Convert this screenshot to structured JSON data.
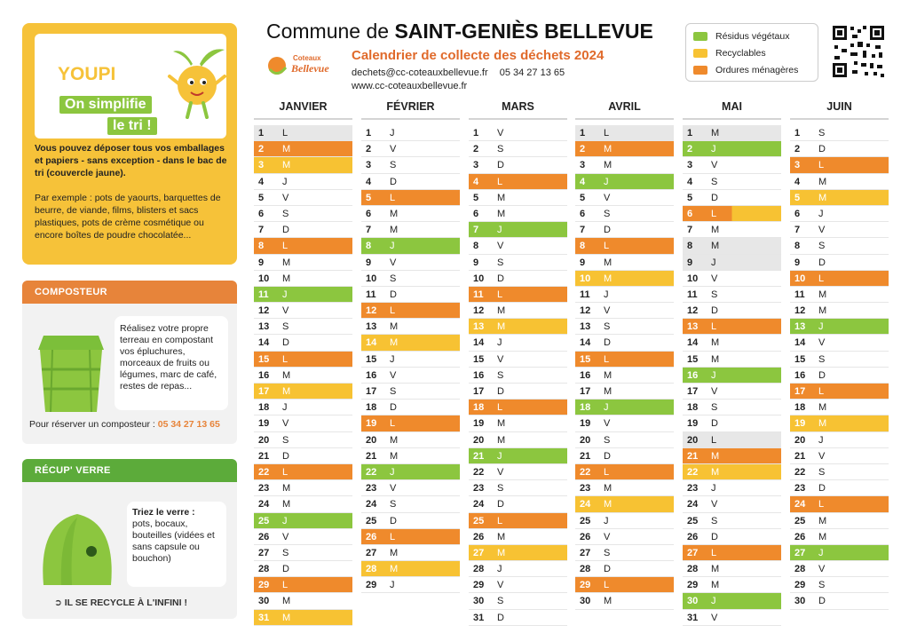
{
  "colors": {
    "orange": "#ef8a2c",
    "yellow": "#f7c233",
    "green": "#8cc63f",
    "gray": "#e7e7e7"
  },
  "youpi": {
    "word": "YOUPI",
    "line1": "On simplifie",
    "line2": "le tri !",
    "strong": "Vous pouvez déposer tous vos emballages et papiers - sans exception - dans le bac de tri (couvercle jaune).",
    "text": "Par exemple : pots de yaourts, barquettes de beurre, de viande, films, blisters et sacs plastiques, pots de crème cosmétique ou encore boîtes de poudre chocolatée..."
  },
  "composteur": {
    "title": "COMPOSTEUR",
    "text": "Réalisez votre propre terreau en compostant vos épluchures, morceaux de fruits ou légumes, marc de café, restes de repas...",
    "reserve_label": "Pour réserver un composteur :",
    "reserve_phone": "05 34 27 13 65"
  },
  "verre": {
    "title": "RÉCUP' VERRE",
    "text_bold": "Triez le verre :",
    "text": "pots, bocaux, bouteilles (vidées et sans capsule ou bouchon)",
    "footer": "IL SE RECYCLE À L'INFINI !"
  },
  "header": {
    "title_prefix": "Commune de",
    "title_name": "SAINT-GENIÈS BELLEVUE",
    "subtitle": "Calendrier de collecte des déchets 2024",
    "email": "dechets@cc-coteauxbellevue.fr",
    "phone": "05 34 27 13 65",
    "web": "www.cc-coteauxbellevue.fr",
    "logo_top": "Coteaux",
    "logo_main": "Bellevue"
  },
  "legend": [
    {
      "label": "Résidus végétaux",
      "color": "#8cc63f"
    },
    {
      "label": "Recyclables",
      "color": "#f7c233"
    },
    {
      "label": "Ordures ménagères",
      "color": "#ef8a2c"
    }
  ],
  "months": [
    {
      "name": "JANVIER",
      "days": [
        {
          "d": "1",
          "l": "L",
          "t": "sh"
        },
        {
          "d": "2",
          "l": "M",
          "t": "o"
        },
        {
          "d": "3",
          "l": "M",
          "t": "y"
        },
        {
          "d": "4",
          "l": "J"
        },
        {
          "d": "5",
          "l": "V"
        },
        {
          "d": "6",
          "l": "S"
        },
        {
          "d": "7",
          "l": "D"
        },
        {
          "d": "8",
          "l": "L",
          "t": "o"
        },
        {
          "d": "9",
          "l": "M"
        },
        {
          "d": "10",
          "l": "M"
        },
        {
          "d": "11",
          "l": "J",
          "t": "g"
        },
        {
          "d": "12",
          "l": "V"
        },
        {
          "d": "13",
          "l": "S"
        },
        {
          "d": "14",
          "l": "D"
        },
        {
          "d": "15",
          "l": "L",
          "t": "o"
        },
        {
          "d": "16",
          "l": "M"
        },
        {
          "d": "17",
          "l": "M",
          "t": "y"
        },
        {
          "d": "18",
          "l": "J"
        },
        {
          "d": "19",
          "l": "V"
        },
        {
          "d": "20",
          "l": "S"
        },
        {
          "d": "21",
          "l": "D"
        },
        {
          "d": "22",
          "l": "L",
          "t": "o"
        },
        {
          "d": "23",
          "l": "M"
        },
        {
          "d": "24",
          "l": "M"
        },
        {
          "d": "25",
          "l": "J",
          "t": "g"
        },
        {
          "d": "26",
          "l": "V"
        },
        {
          "d": "27",
          "l": "S"
        },
        {
          "d": "28",
          "l": "D"
        },
        {
          "d": "29",
          "l": "L",
          "t": "o"
        },
        {
          "d": "30",
          "l": "M"
        },
        {
          "d": "31",
          "l": "M",
          "t": "y"
        }
      ]
    },
    {
      "name": "FÉVRIER",
      "days": [
        {
          "d": "1",
          "l": "J"
        },
        {
          "d": "2",
          "l": "V"
        },
        {
          "d": "3",
          "l": "S"
        },
        {
          "d": "4",
          "l": "D"
        },
        {
          "d": "5",
          "l": "L",
          "t": "o"
        },
        {
          "d": "6",
          "l": "M"
        },
        {
          "d": "7",
          "l": "M"
        },
        {
          "d": "8",
          "l": "J",
          "t": "g"
        },
        {
          "d": "9",
          "l": "V"
        },
        {
          "d": "10",
          "l": "S"
        },
        {
          "d": "11",
          "l": "D"
        },
        {
          "d": "12",
          "l": "L",
          "t": "o"
        },
        {
          "d": "13",
          "l": "M"
        },
        {
          "d": "14",
          "l": "M",
          "t": "y"
        },
        {
          "d": "15",
          "l": "J"
        },
        {
          "d": "16",
          "l": "V"
        },
        {
          "d": "17",
          "l": "S"
        },
        {
          "d": "18",
          "l": "D"
        },
        {
          "d": "19",
          "l": "L",
          "t": "o"
        },
        {
          "d": "20",
          "l": "M"
        },
        {
          "d": "21",
          "l": "M"
        },
        {
          "d": "22",
          "l": "J",
          "t": "g"
        },
        {
          "d": "23",
          "l": "V"
        },
        {
          "d": "24",
          "l": "S"
        },
        {
          "d": "25",
          "l": "D"
        },
        {
          "d": "26",
          "l": "L",
          "t": "o"
        },
        {
          "d": "27",
          "l": "M"
        },
        {
          "d": "28",
          "l": "M",
          "t": "y"
        },
        {
          "d": "29",
          "l": "J"
        }
      ]
    },
    {
      "name": "MARS",
      "days": [
        {
          "d": "1",
          "l": "V"
        },
        {
          "d": "2",
          "l": "S"
        },
        {
          "d": "3",
          "l": "D"
        },
        {
          "d": "4",
          "l": "L",
          "t": "o"
        },
        {
          "d": "5",
          "l": "M"
        },
        {
          "d": "6",
          "l": "M"
        },
        {
          "d": "7",
          "l": "J",
          "t": "g"
        },
        {
          "d": "8",
          "l": "V"
        },
        {
          "d": "9",
          "l": "S"
        },
        {
          "d": "10",
          "l": "D"
        },
        {
          "d": "11",
          "l": "L",
          "t": "o"
        },
        {
          "d": "12",
          "l": "M"
        },
        {
          "d": "13",
          "l": "M",
          "t": "y"
        },
        {
          "d": "14",
          "l": "J"
        },
        {
          "d": "15",
          "l": "V"
        },
        {
          "d": "16",
          "l": "S"
        },
        {
          "d": "17",
          "l": "D"
        },
        {
          "d": "18",
          "l": "L",
          "t": "o"
        },
        {
          "d": "19",
          "l": "M"
        },
        {
          "d": "20",
          "l": "M"
        },
        {
          "d": "21",
          "l": "J",
          "t": "g"
        },
        {
          "d": "22",
          "l": "V"
        },
        {
          "d": "23",
          "l": "S"
        },
        {
          "d": "24",
          "l": "D"
        },
        {
          "d": "25",
          "l": "L",
          "t": "o"
        },
        {
          "d": "26",
          "l": "M"
        },
        {
          "d": "27",
          "l": "M",
          "t": "y"
        },
        {
          "d": "28",
          "l": "J"
        },
        {
          "d": "29",
          "l": "V"
        },
        {
          "d": "30",
          "l": "S"
        },
        {
          "d": "31",
          "l": "D"
        }
      ]
    },
    {
      "name": "AVRIL",
      "days": [
        {
          "d": "1",
          "l": "L",
          "t": "sh"
        },
        {
          "d": "2",
          "l": "M",
          "t": "o"
        },
        {
          "d": "3",
          "l": "M"
        },
        {
          "d": "4",
          "l": "J",
          "t": "g"
        },
        {
          "d": "5",
          "l": "V"
        },
        {
          "d": "6",
          "l": "S"
        },
        {
          "d": "7",
          "l": "D"
        },
        {
          "d": "8",
          "l": "L",
          "t": "o"
        },
        {
          "d": "9",
          "l": "M"
        },
        {
          "d": "10",
          "l": "M",
          "t": "y"
        },
        {
          "d": "11",
          "l": "J"
        },
        {
          "d": "12",
          "l": "V"
        },
        {
          "d": "13",
          "l": "S"
        },
        {
          "d": "14",
          "l": "D"
        },
        {
          "d": "15",
          "l": "L",
          "t": "o"
        },
        {
          "d": "16",
          "l": "M"
        },
        {
          "d": "17",
          "l": "M"
        },
        {
          "d": "18",
          "l": "J",
          "t": "g"
        },
        {
          "d": "19",
          "l": "V"
        },
        {
          "d": "20",
          "l": "S"
        },
        {
          "d": "21",
          "l": "D"
        },
        {
          "d": "22",
          "l": "L",
          "t": "o"
        },
        {
          "d": "23",
          "l": "M"
        },
        {
          "d": "24",
          "l": "M",
          "t": "y"
        },
        {
          "d": "25",
          "l": "J"
        },
        {
          "d": "26",
          "l": "V"
        },
        {
          "d": "27",
          "l": "S"
        },
        {
          "d": "28",
          "l": "D"
        },
        {
          "d": "29",
          "l": "L",
          "t": "o"
        },
        {
          "d": "30",
          "l": "M"
        }
      ]
    },
    {
      "name": "MAI",
      "days": [
        {
          "d": "1",
          "l": "M",
          "t": "sh"
        },
        {
          "d": "2",
          "l": "J",
          "t": "g"
        },
        {
          "d": "3",
          "l": "V"
        },
        {
          "d": "4",
          "l": "S"
        },
        {
          "d": "5",
          "l": "D"
        },
        {
          "d": "6",
          "l": "L",
          "t": "half"
        },
        {
          "d": "7",
          "l": "M"
        },
        {
          "d": "8",
          "l": "M",
          "t": "sh"
        },
        {
          "d": "9",
          "l": "J",
          "t": "sh"
        },
        {
          "d": "10",
          "l": "V"
        },
        {
          "d": "11",
          "l": "S"
        },
        {
          "d": "12",
          "l": "D"
        },
        {
          "d": "13",
          "l": "L",
          "t": "o"
        },
        {
          "d": "14",
          "l": "M"
        },
        {
          "d": "15",
          "l": "M"
        },
        {
          "d": "16",
          "l": "J",
          "t": "g"
        },
        {
          "d": "17",
          "l": "V"
        },
        {
          "d": "18",
          "l": "S"
        },
        {
          "d": "19",
          "l": "D"
        },
        {
          "d": "20",
          "l": "L",
          "t": "sh"
        },
        {
          "d": "21",
          "l": "M",
          "t": "o"
        },
        {
          "d": "22",
          "l": "M",
          "t": "y"
        },
        {
          "d": "23",
          "l": "J"
        },
        {
          "d": "24",
          "l": "V"
        },
        {
          "d": "25",
          "l": "S"
        },
        {
          "d": "26",
          "l": "D"
        },
        {
          "d": "27",
          "l": "L",
          "t": "o"
        },
        {
          "d": "28",
          "l": "M"
        },
        {
          "d": "29",
          "l": "M"
        },
        {
          "d": "30",
          "l": "J",
          "t": "g"
        },
        {
          "d": "31",
          "l": "V"
        }
      ]
    },
    {
      "name": "JUIN",
      "days": [
        {
          "d": "1",
          "l": "S"
        },
        {
          "d": "2",
          "l": "D"
        },
        {
          "d": "3",
          "l": "L",
          "t": "o"
        },
        {
          "d": "4",
          "l": "M"
        },
        {
          "d": "5",
          "l": "M",
          "t": "y"
        },
        {
          "d": "6",
          "l": "J"
        },
        {
          "d": "7",
          "l": "V"
        },
        {
          "d": "8",
          "l": "S"
        },
        {
          "d": "9",
          "l": "D"
        },
        {
          "d": "10",
          "l": "L",
          "t": "o"
        },
        {
          "d": "11",
          "l": "M"
        },
        {
          "d": "12",
          "l": "M"
        },
        {
          "d": "13",
          "l": "J",
          "t": "g"
        },
        {
          "d": "14",
          "l": "V"
        },
        {
          "d": "15",
          "l": "S"
        },
        {
          "d": "16",
          "l": "D"
        },
        {
          "d": "17",
          "l": "L",
          "t": "o"
        },
        {
          "d": "18",
          "l": "M"
        },
        {
          "d": "19",
          "l": "M",
          "t": "y"
        },
        {
          "d": "20",
          "l": "J"
        },
        {
          "d": "21",
          "l": "V"
        },
        {
          "d": "22",
          "l": "S"
        },
        {
          "d": "23",
          "l": "D"
        },
        {
          "d": "24",
          "l": "L",
          "t": "o"
        },
        {
          "d": "25",
          "l": "M"
        },
        {
          "d": "26",
          "l": "M"
        },
        {
          "d": "27",
          "l": "J",
          "t": "g"
        },
        {
          "d": "28",
          "l": "V"
        },
        {
          "d": "29",
          "l": "S"
        },
        {
          "d": "30",
          "l": "D"
        }
      ]
    }
  ]
}
